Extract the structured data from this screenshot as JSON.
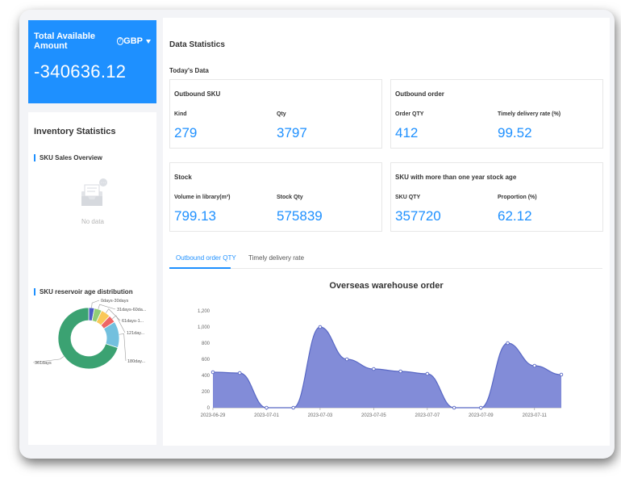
{
  "amount": {
    "label": "Total Available Amount",
    "help_icon": "?",
    "currency": "GBP",
    "value": "-340636.12"
  },
  "inventory": {
    "title": "Inventory Statistics",
    "sku_sales_title": "SKU Sales Overview",
    "no_data": "No data",
    "reservoir_title": "SKU reservoir age distribution",
    "donut": [
      {
        "label": "0days-30days",
        "value": 3,
        "color": "#4b5bc4"
      },
      {
        "label": "31days-60da...",
        "value": 4,
        "color": "#91cc75"
      },
      {
        "label": "61days-1...",
        "value": 5,
        "color": "#fac858"
      },
      {
        "label": "121day...",
        "value": 4,
        "color": "#ee6666"
      },
      {
        "label": "180day...",
        "value": 14,
        "color": "#73c0de"
      },
      {
        "label": "361days",
        "value": 70,
        "color": "#3ba272"
      }
    ]
  },
  "main": {
    "title": "Data Statistics",
    "today_label": "Today's Data",
    "cards": [
      {
        "title": "Outbound SKU",
        "k1": "Kind",
        "v1": "279",
        "k2": "Qty",
        "v2": "3797"
      },
      {
        "title": "Outbound order",
        "k1": "Order QTY",
        "v1": "412",
        "k2": "Timely delivery rate (%)",
        "v2": "99.52"
      },
      {
        "title": "Stock",
        "k1": "Volume in library(m³)",
        "v1": "799.13",
        "k2": "Stock Qty",
        "v2": "575839"
      },
      {
        "title": "SKU with more than one year stock age",
        "k1": "SKU QTY",
        "v1": "357720",
        "k2": "Proportion (%)",
        "v2": "62.12"
      }
    ],
    "tabs": [
      "Outbound order QTY",
      "Timely delivery rate"
    ]
  },
  "chart_data": {
    "type": "area",
    "title": "Overseas warehouse order",
    "ylim": [
      0,
      1200
    ],
    "yticks": [
      "0",
      "200",
      "400",
      "600",
      "800",
      "1,000",
      "1,200"
    ],
    "x": [
      "2023-06-29",
      "2023-06-30",
      "2023-07-01",
      "2023-07-02",
      "2023-07-03",
      "2023-07-04",
      "2023-07-05",
      "2023-07-06",
      "2023-07-07",
      "2023-07-08",
      "2023-07-09",
      "2023-07-10",
      "2023-07-11",
      "2023-07-12"
    ],
    "xtick_labels": [
      "2023-06-29",
      "2023-07-01",
      "2023-07-03",
      "2023-07-05",
      "2023-07-07",
      "2023-07-09",
      "2023-07-11"
    ],
    "series": [
      {
        "values": [
          440,
          430,
          0,
          0,
          1000,
          600,
          480,
          450,
          420,
          0,
          0,
          800,
          520,
          410
        ]
      }
    ],
    "color": "#7b86d6"
  }
}
